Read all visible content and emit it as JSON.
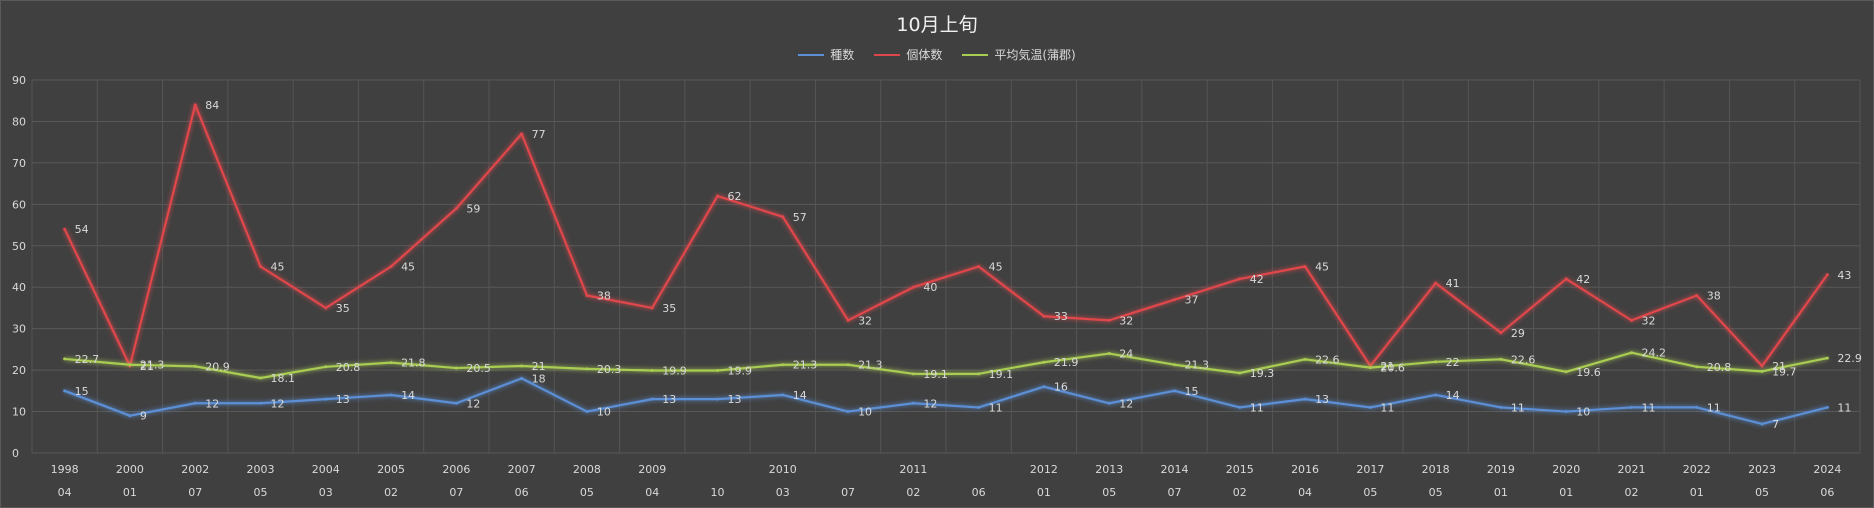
{
  "chart_data": {
    "type": "line",
    "title": "10月上旬",
    "ylim": [
      0,
      90
    ],
    "yticks": [
      0,
      10,
      20,
      30,
      40,
      50,
      60,
      70,
      80,
      90
    ],
    "grid": true,
    "legend_position": "top-center",
    "categories": [
      {
        "year": "1998",
        "sub": "04"
      },
      {
        "year": "2000",
        "sub": "01"
      },
      {
        "year": "2002",
        "sub": "07"
      },
      {
        "year": "2003",
        "sub": "05"
      },
      {
        "year": "2004",
        "sub": "03"
      },
      {
        "year": "2005",
        "sub": "02"
      },
      {
        "year": "2006",
        "sub": "07"
      },
      {
        "year": "2007",
        "sub": "06"
      },
      {
        "year": "2008",
        "sub": "05"
      },
      {
        "year": "2009",
        "sub": "04"
      },
      {
        "year": "",
        "sub": "10"
      },
      {
        "year": "2010",
        "sub": "03"
      },
      {
        "year": "",
        "sub": "07"
      },
      {
        "year": "2011",
        "sub": "02"
      },
      {
        "year": "",
        "sub": "06"
      },
      {
        "year": "2012",
        "sub": "01"
      },
      {
        "year": "2013",
        "sub": "05"
      },
      {
        "year": "2014",
        "sub": "07"
      },
      {
        "year": "2015",
        "sub": "02"
      },
      {
        "year": "2016",
        "sub": "04"
      },
      {
        "year": "2017",
        "sub": "05"
      },
      {
        "year": "2018",
        "sub": "05"
      },
      {
        "year": "2019",
        "sub": "01"
      },
      {
        "year": "2020",
        "sub": "01"
      },
      {
        "year": "2021",
        "sub": "02"
      },
      {
        "year": "2022",
        "sub": "01"
      },
      {
        "year": "2023",
        "sub": "05"
      },
      {
        "year": "2024",
        "sub": "06"
      }
    ],
    "series": [
      {
        "name": "種数",
        "color": "#5b8fd6",
        "values": [
          15,
          9,
          12,
          12,
          13,
          14,
          12,
          18,
          10,
          13,
          13,
          14,
          10,
          12,
          11,
          16,
          12,
          15,
          11,
          13,
          11,
          14,
          11,
          10,
          11,
          11,
          7,
          11
        ]
      },
      {
        "name": "個体数",
        "color": "#e0474c",
        "values": [
          54,
          21,
          84,
          45,
          35,
          45,
          59,
          77,
          38,
          35,
          62,
          57,
          32,
          40,
          45,
          33,
          32,
          37,
          42,
          45,
          21,
          41,
          29,
          42,
          32,
          38,
          21,
          43
        ]
      },
      {
        "name": "平均気温(蒲郡)",
        "color": "#a9cc52",
        "values": [
          22.7,
          21.3,
          20.9,
          18.1,
          20.8,
          21.8,
          20.5,
          21,
          20.3,
          19.9,
          19.9,
          21.3,
          21.3,
          19.1,
          19.1,
          21.9,
          24,
          21.3,
          19.3,
          22.6,
          20.6,
          22,
          22.6,
          19.6,
          24.2,
          20.8,
          19.7,
          22.9
        ]
      }
    ]
  }
}
